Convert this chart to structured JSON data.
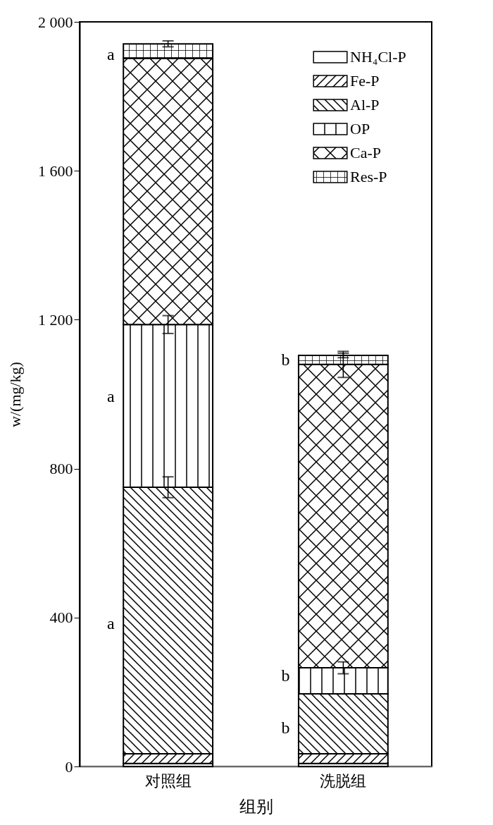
{
  "chart_data": {
    "type": "bar",
    "stacked": true,
    "xlabel": "组别",
    "ylabel": "w/(mg/kg)",
    "categories": [
      "对照组",
      "洗脱组"
    ],
    "series": [
      {
        "name": "NH₄Cl-P",
        "color": "#000000",
        "values": [
          8,
          8
        ]
      },
      {
        "name": "Fe-P",
        "color": "#000000",
        "values": [
          26,
          26
        ]
      },
      {
        "name": "Al-P",
        "color": "#000000",
        "values": [
          716,
          161
        ],
        "errors": [
          28,
          null
        ]
      },
      {
        "name": "OP",
        "color": "#000000",
        "values": [
          437,
          70
        ],
        "errors": [
          24,
          16
        ]
      },
      {
        "name": "Ca-P",
        "color": "#000000",
        "values": [
          715,
          815
        ],
        "errors": [
          null,
          35
        ]
      },
      {
        "name": "Res-P",
        "color": "#000000",
        "values": [
          39,
          24
        ],
        "errors": [
          8,
          6
        ]
      }
    ],
    "ylim": [
      0,
      2000
    ],
    "yticks": [
      0,
      400,
      800,
      {
        "value": 1200,
        "label": "1 200"
      },
      {
        "value": 1600,
        "label": "1 600"
      },
      {
        "value": 2000,
        "label": "2 000"
      }
    ],
    "legend": "top right",
    "grid": false,
    "annotations": [
      "a",
      "a",
      "a",
      "b",
      "b",
      "b"
    ]
  }
}
